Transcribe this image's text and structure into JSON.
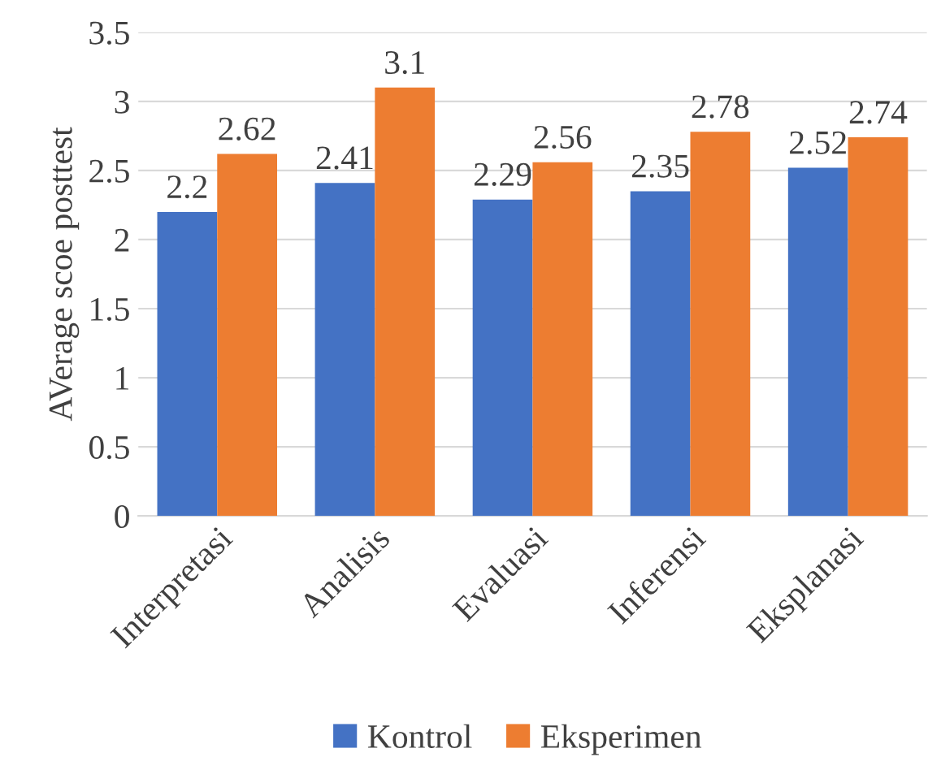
{
  "chart_data": {
    "type": "bar",
    "ylabel": "AVerage scoe posttest",
    "categories": [
      "Interpretasi",
      "Analisis",
      "Evaluasi",
      "Inferensi",
      "Eksplanasi"
    ],
    "series": [
      {
        "name": "Kontrol",
        "color": "#4472c4",
        "values": [
          2.2,
          2.41,
          2.29,
          2.35,
          2.52
        ]
      },
      {
        "name": "Eksperimen",
        "color": "#ed7d31",
        "values": [
          2.62,
          3.1,
          2.56,
          2.78,
          2.74
        ]
      }
    ],
    "ylim": [
      0,
      3.5
    ],
    "yticks": [
      0,
      0.5,
      1,
      1.5,
      2,
      2.5,
      3,
      3.5
    ],
    "grid": "y",
    "legend": "bottom",
    "data_labels": true
  }
}
